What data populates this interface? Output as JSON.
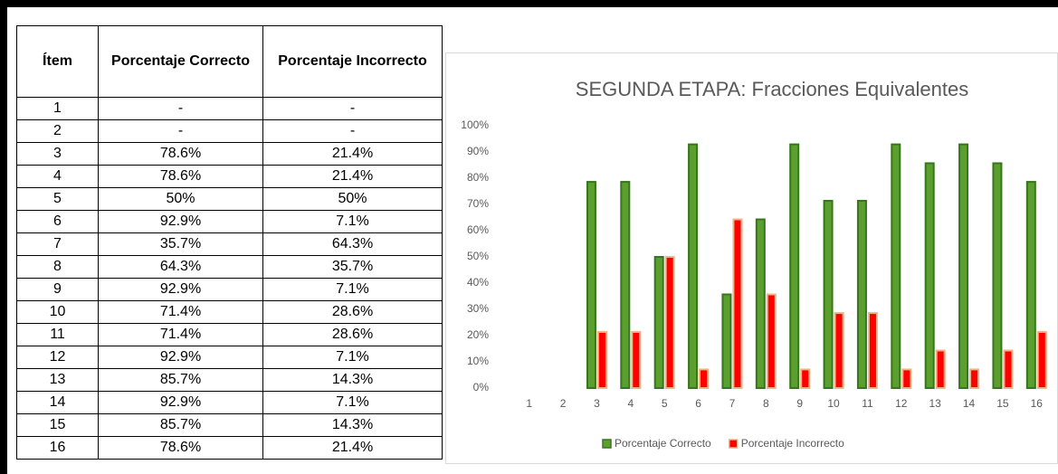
{
  "table": {
    "header": [
      "Ítem",
      "Porcentaje Correcto",
      "Porcentaje Incorrecto"
    ],
    "rows": [
      [
        "1",
        "-",
        "-"
      ],
      [
        "2",
        "-",
        "-"
      ],
      [
        "3",
        "78.6%",
        "21.4%"
      ],
      [
        "4",
        "78.6%",
        "21.4%"
      ],
      [
        "5",
        "50%",
        "50%"
      ],
      [
        "6",
        "92.9%",
        "7.1%"
      ],
      [
        "7",
        "35.7%",
        "64.3%"
      ],
      [
        "8",
        "64.3%",
        "35.7%"
      ],
      [
        "9",
        "92.9%",
        "7.1%"
      ],
      [
        "10",
        "71.4%",
        "28.6%"
      ],
      [
        "11",
        "71.4%",
        "28.6%"
      ],
      [
        "12",
        "92.9%",
        "7.1%"
      ],
      [
        "13",
        "85.7%",
        "14.3%"
      ],
      [
        "14",
        "92.9%",
        "7.1%"
      ],
      [
        "15",
        "85.7%",
        "14.3%"
      ],
      [
        "16",
        "78.6%",
        "21.4%"
      ]
    ]
  },
  "chart_data": {
    "type": "bar",
    "title": "SEGUNDA ETAPA: Fracciones Equivalentes",
    "categories": [
      "1",
      "2",
      "3",
      "4",
      "5",
      "6",
      "7",
      "8",
      "9",
      "10",
      "11",
      "12",
      "13",
      "14",
      "15",
      "16"
    ],
    "series": [
      {
        "name": "Porcentaje Correcto",
        "color": "#5b9f2e",
        "values": [
          null,
          null,
          78.6,
          78.6,
          50,
          92.9,
          35.7,
          64.3,
          92.9,
          71.4,
          71.4,
          92.9,
          85.7,
          92.9,
          85.7,
          78.6
        ]
      },
      {
        "name": "Porcentaje Incorrecto",
        "color": "#ff0000",
        "values": [
          null,
          null,
          21.4,
          21.4,
          50,
          7.1,
          64.3,
          35.7,
          7.1,
          28.6,
          28.6,
          7.1,
          14.3,
          7.1,
          14.3,
          21.4
        ]
      }
    ],
    "ylim": [
      0,
      100
    ],
    "yticks": [
      {
        "value": 0,
        "label": "0%"
      },
      {
        "value": 10,
        "label": "10%"
      },
      {
        "value": 20,
        "label": "20%"
      },
      {
        "value": 30,
        "label": "30%"
      },
      {
        "value": 40,
        "label": "40%"
      },
      {
        "value": 50,
        "label": "50%"
      },
      {
        "value": 60,
        "label": "60%"
      },
      {
        "value": 70,
        "label": "70%"
      },
      {
        "value": 80,
        "label": "80%"
      },
      {
        "value": 90,
        "label": "90%"
      },
      {
        "value": 100,
        "label": "100%"
      }
    ],
    "grid": false,
    "legend": "bottom"
  }
}
